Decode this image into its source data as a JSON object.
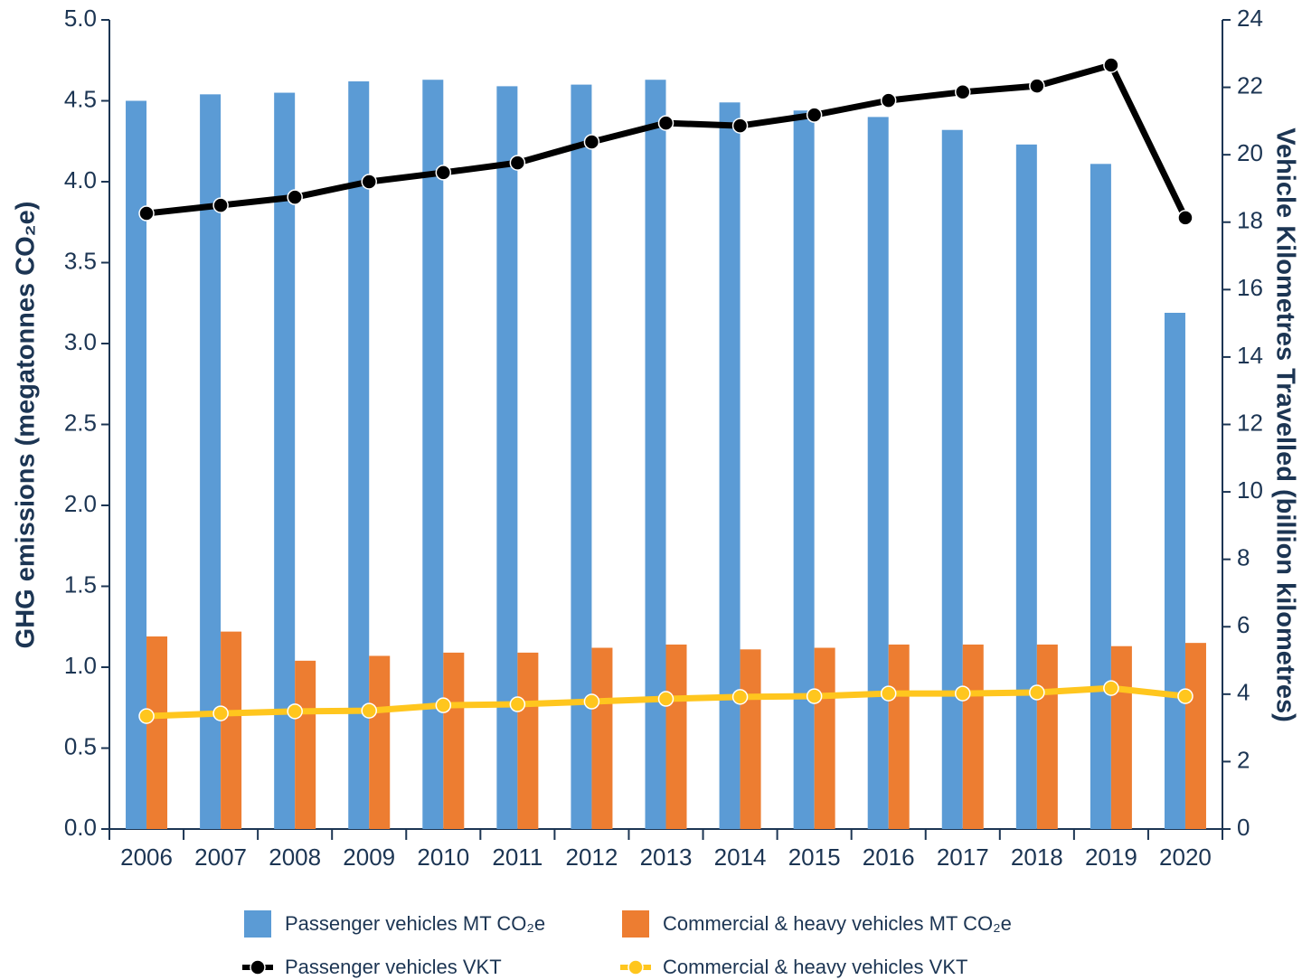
{
  "chart_data": {
    "type": "bar",
    "y_label": "GHG emissions (megatonnes CO₂e)",
    "y2_label": "Vehicle Kilometres Travelled (billion kilometres)",
    "categories": [
      "2006",
      "2007",
      "2008",
      "2009",
      "2010",
      "2011",
      "2012",
      "2013",
      "2014",
      "2015",
      "2016",
      "2017",
      "2018",
      "2019",
      "2020"
    ],
    "series": [
      {
        "name": "Passenger vehicles MT CO₂e",
        "type": "bar",
        "color": "#5b9bd5",
        "values": [
          4.5,
          4.54,
          4.55,
          4.62,
          4.63,
          4.59,
          4.6,
          4.63,
          4.49,
          4.44,
          4.4,
          4.32,
          4.23,
          4.11,
          3.19
        ]
      },
      {
        "name": "Commercial & heavy vehicles MT CO₂e",
        "type": "bar",
        "color": "#ed7d31",
        "values": [
          1.19,
          1.22,
          1.04,
          1.07,
          1.09,
          1.09,
          1.12,
          1.14,
          1.11,
          1.12,
          1.14,
          1.14,
          1.14,
          1.13,
          1.15
        ]
      },
      {
        "name": "Passenger vehicles VKT",
        "type": "line",
        "axis": "y2",
        "color": "#000000",
        "values": [
          18.26,
          18.5,
          18.74,
          19.2,
          19.47,
          19.76,
          20.38,
          20.94,
          20.86,
          21.18,
          21.61,
          21.86,
          22.04,
          22.66,
          18.13
        ]
      },
      {
        "name": "Commercial & heavy vehicles VKT",
        "type": "line",
        "axis": "y2",
        "color": "#ffc61e",
        "values": [
          3.35,
          3.43,
          3.49,
          3.51,
          3.67,
          3.7,
          3.78,
          3.86,
          3.92,
          3.94,
          4.02,
          4.02,
          4.05,
          4.18,
          3.94
        ]
      }
    ],
    "ylim": [
      0,
      5
    ],
    "yticks": [
      {
        "value": 0,
        "label": "0.0"
      },
      0.5,
      {
        "value": 1,
        "label": "1.0"
      },
      1.5,
      {
        "value": 2,
        "label": "2.0"
      },
      2.5,
      {
        "value": 3,
        "label": "3.0"
      },
      3.5,
      {
        "value": 4,
        "label": "4.0"
      },
      4.5,
      {
        "value": 5,
        "label": "5.0"
      }
    ],
    "y2lim": [
      0,
      24
    ],
    "y2ticks": [
      0,
      2,
      4,
      6,
      8,
      10,
      12,
      14,
      16,
      18,
      20,
      22,
      24
    ],
    "grid": false,
    "legend": "bottom"
  }
}
